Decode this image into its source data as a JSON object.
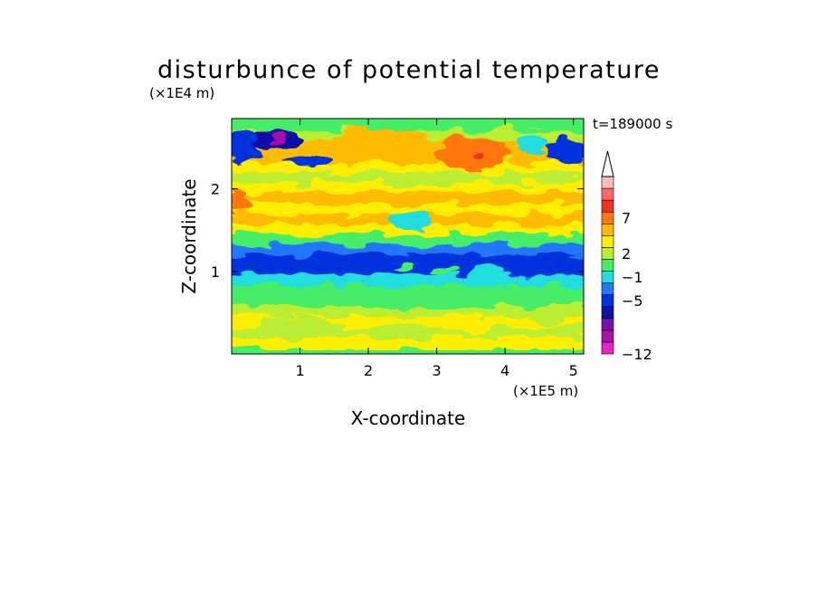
{
  "chart_data": {
    "type": "heatmap",
    "title": "disturbunce of potential temperature",
    "xlabel": "X-coordinate",
    "ylabel": "Z-coordinate",
    "x_unit": "(×1E5 m)",
    "y_unit": "(×1E4 m)",
    "time_label": "t=189000 s",
    "xlim": [
      0,
      5.15
    ],
    "ylim": [
      0,
      2.85
    ],
    "x_ticks": [
      {
        "value": 1,
        "label": "1"
      },
      {
        "value": 2,
        "label": "2"
      },
      {
        "value": 3,
        "label": "3"
      },
      {
        "value": 4,
        "label": "4"
      },
      {
        "value": 5,
        "label": "5"
      }
    ],
    "y_ticks": [
      {
        "value": 1,
        "label": "1"
      },
      {
        "value": 2,
        "label": "2"
      }
    ],
    "colorbar": {
      "labels": [
        {
          "value": 7,
          "label": "7"
        },
        {
          "value": 2,
          "label": "2"
        },
        {
          "value": -1,
          "label": "−1"
        },
        {
          "value": -5,
          "label": "−5"
        },
        {
          "value": -12,
          "label": "−12"
        }
      ],
      "colors": [
        "#ee22cc",
        "#aa11aa",
        "#7711aa",
        "#1111aa",
        "#0033dd",
        "#2277ff",
        "#22dddd",
        "#44ee66",
        "#bbee33",
        "#ffee00",
        "#ffbb00",
        "#ff7711",
        "#ee3322",
        "#ff6666",
        "#ffbbbb"
      ],
      "extend": "max"
    },
    "bands": [
      {
        "z": 0.12,
        "level": 9
      },
      {
        "z": 0.25,
        "level": 8
      },
      {
        "z": 0.38,
        "level": 9
      },
      {
        "z": 0.5,
        "level": 8
      },
      {
        "z": 0.62,
        "level": 7
      },
      {
        "z": 0.75,
        "level": 7
      },
      {
        "z": 0.88,
        "level": 6
      },
      {
        "z": 1.0,
        "level": 4
      },
      {
        "z": 1.12,
        "level": 4
      },
      {
        "z": 1.25,
        "level": 5
      },
      {
        "z": 1.38,
        "level": 7
      },
      {
        "z": 1.5,
        "level": 9
      },
      {
        "z": 1.62,
        "level": 10
      },
      {
        "z": 1.75,
        "level": 9
      },
      {
        "z": 1.88,
        "level": 10
      },
      {
        "z": 2.0,
        "level": 9
      },
      {
        "z": 2.12,
        "level": 8
      },
      {
        "z": 2.25,
        "level": 9
      },
      {
        "z": 2.38,
        "level": 10
      },
      {
        "z": 2.5,
        "level": 10
      },
      {
        "z": 2.62,
        "level": 8
      },
      {
        "z": 2.75,
        "level": 7
      }
    ],
    "features": [
      {
        "x": 3.55,
        "z": 2.42,
        "rx": 0.55,
        "rz": 0.2,
        "level": 11
      },
      {
        "x": 3.58,
        "z": 2.42,
        "rx": 0.1,
        "rz": 0.06,
        "level": 12
      },
      {
        "x": 2.2,
        "z": 2.55,
        "rx": 0.8,
        "rz": 0.18,
        "level": 10
      },
      {
        "x": 0.15,
        "z": 2.5,
        "rx": 0.25,
        "rz": 0.18,
        "level": 4
      },
      {
        "x": 0.7,
        "z": 2.6,
        "rx": 0.35,
        "rz": 0.12,
        "level": 3
      },
      {
        "x": 0.7,
        "z": 2.6,
        "rx": 0.1,
        "rz": 0.06,
        "level": 1
      },
      {
        "x": 1.1,
        "z": 2.35,
        "rx": 0.35,
        "rz": 0.08,
        "level": 4
      },
      {
        "x": 4.9,
        "z": 2.45,
        "rx": 0.3,
        "rz": 0.15,
        "level": 4
      },
      {
        "x": 4.4,
        "z": 2.55,
        "rx": 0.25,
        "rz": 0.1,
        "level": 6
      },
      {
        "x": 0.1,
        "z": 1.85,
        "rx": 0.15,
        "rz": 0.15,
        "level": 11
      },
      {
        "x": 2.6,
        "z": 1.6,
        "rx": 0.3,
        "rz": 0.1,
        "level": 6
      },
      {
        "x": 2.5,
        "z": 1.05,
        "rx": 0.15,
        "rz": 0.04,
        "level": 7
      },
      {
        "x": 3.1,
        "z": 1.0,
        "rx": 0.2,
        "rz": 0.05,
        "level": 7
      },
      {
        "x": 3.7,
        "z": 0.95,
        "rx": 0.25,
        "rz": 0.15,
        "level": 6
      },
      {
        "x": 0.9,
        "z": 0.35,
        "rx": 0.5,
        "rz": 0.1,
        "level": 8
      },
      {
        "x": 3.5,
        "z": 0.35,
        "rx": 0.4,
        "rz": 0.08,
        "level": 9
      },
      {
        "x": 4.6,
        "z": 0.45,
        "rx": 0.3,
        "rz": 0.1,
        "level": 8
      }
    ]
  }
}
